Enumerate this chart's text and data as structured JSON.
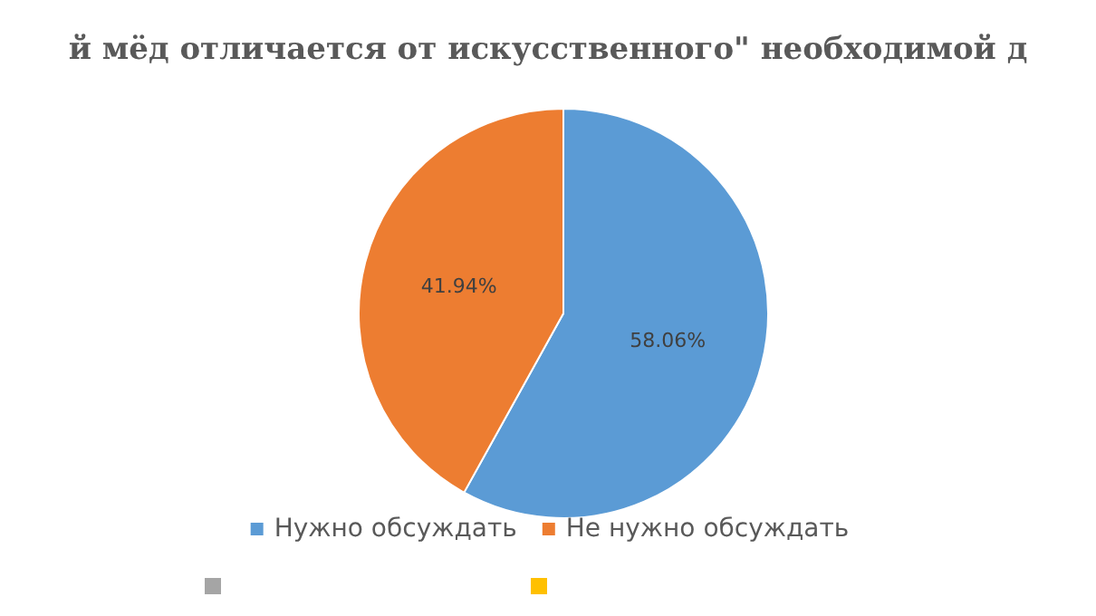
{
  "chart_data": {
    "type": "pie",
    "title": "й мёд отличается от искусственного\" необходимой д",
    "categories": [
      "Нужно обсуждать",
      "Не нужно обсуждать",
      null,
      null
    ],
    "values": [
      58.06,
      41.94,
      0,
      0
    ],
    "value_labels": [
      "58.06%",
      "41.94%",
      null,
      null
    ],
    "colors": [
      "#5b9bd5",
      "#ed7d31",
      "#a5a5a5",
      "#ffc000"
    ],
    "legend": "bottom"
  }
}
